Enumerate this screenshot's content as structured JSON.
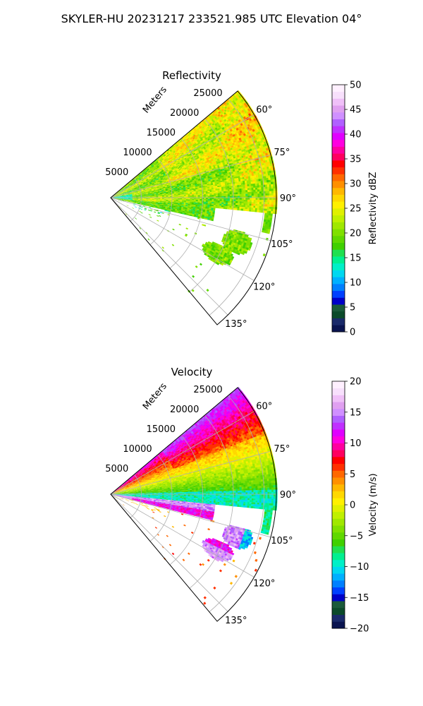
{
  "figure": {
    "suptitle": "SKYLER-HU  20231217  233521.985 UTC Elevation 04°"
  },
  "chart_data": [
    {
      "type": "heatmap",
      "title": "Reflectivity",
      "range_label": "Meters",
      "range_ticks": [
        5000,
        10000,
        15000,
        20000,
        25000
      ],
      "range_tick_labels": [
        "5000",
        "10000",
        "15000",
        "20000",
        "25000"
      ],
      "azimuth_range_deg": [
        50,
        140
      ],
      "azimuth_ticks": [
        60,
        75,
        90,
        105,
        120,
        135
      ],
      "azimuth_tick_labels": [
        "60°",
        "75°",
        "90°",
        "105°",
        "120°",
        "135°"
      ],
      "max_range_m": 27000,
      "grid": true,
      "colorbar": {
        "label": "Reflectivity dBZ",
        "vmin": 0,
        "vmax": 50,
        "ticks": [
          0,
          5,
          10,
          15,
          20,
          25,
          30,
          35,
          40,
          45,
          50
        ],
        "tick_labels": [
          "0",
          "5",
          "10",
          "15",
          "20",
          "25",
          "30",
          "35",
          "40",
          "45",
          "50"
        ],
        "colors": [
          "#0a1450",
          "#1a2a6a",
          "#0b4a2a",
          "#1a5a3a",
          "#0000c8",
          "#0040ff",
          "#0080ff",
          "#00b0ff",
          "#00d8f0",
          "#00f0c8",
          "#00f090",
          "#20e050",
          "#40d000",
          "#60d800",
          "#80e000",
          "#a0e800",
          "#c0f000",
          "#e0f000",
          "#fff000",
          "#ffd800",
          "#ffb800",
          "#ff9000",
          "#ff6800",
          "#ff3000",
          "#ff0000",
          "#ff0060",
          "#ff00a0",
          "#ff00e0",
          "#e000ff",
          "#c030ff",
          "#b060ff",
          "#d090ff",
          "#e0a0f0",
          "#f0c0f8",
          "#f8e0fc",
          "#fff0ff"
        ]
      },
      "field_summary": "Echoes mostly 18-28 dBZ green/yellow in the 50-95 degree sector; isolated 20 dBZ cells near 105-125 degrees; weak 10-15 dBZ returns near the radar."
    },
    {
      "type": "heatmap",
      "title": "Velocity",
      "range_label": "Meters",
      "range_ticks": [
        5000,
        10000,
        15000,
        20000,
        25000
      ],
      "range_tick_labels": [
        "5000",
        "10000",
        "15000",
        "20000",
        "25000"
      ],
      "azimuth_range_deg": [
        50,
        140
      ],
      "azimuth_ticks": [
        60,
        75,
        90,
        105,
        120,
        135
      ],
      "azimuth_tick_labels": [
        "60°",
        "75°",
        "90°",
        "105°",
        "120°",
        "135°"
      ],
      "max_range_m": 27000,
      "grid": true,
      "colorbar": {
        "label": "Velocity (m/s)",
        "vmin": -20,
        "vmax": 20,
        "ticks": [
          -20,
          -15,
          -10,
          -5,
          0,
          5,
          10,
          15,
          20
        ],
        "tick_labels": [
          "−20",
          "−15",
          "−10",
          "−5",
          "0",
          "5",
          "10",
          "15",
          "20"
        ],
        "colors": [
          "#0a1450",
          "#1a2a6a",
          "#0b4a2a",
          "#1a5a3a",
          "#0000c8",
          "#0040ff",
          "#0080ff",
          "#00b0ff",
          "#00d8f0",
          "#00f0c8",
          "#00f090",
          "#20e050",
          "#40d000",
          "#60d800",
          "#80e000",
          "#a0e800",
          "#c0f000",
          "#e0f000",
          "#fff000",
          "#ffd800",
          "#ffb800",
          "#ff9000",
          "#ff6800",
          "#ff3000",
          "#ff0000",
          "#ff0060",
          "#ff00a0",
          "#ff00e0",
          "#e000ff",
          "#c030ff",
          "#b060ff",
          "#d090ff",
          "#e0a0f0",
          "#f0c0f8",
          "#f8e0fc",
          "#fff0ff"
        ]
      },
      "field_summary": "Outbound 10-15 m/s red/magenta near 55-65 degrees grading through yellow to green/cyan (-5 to -12 m/s) near 85-95 degrees; magenta and red cells (10-15 m/s) at 100-125 degrees."
    }
  ]
}
